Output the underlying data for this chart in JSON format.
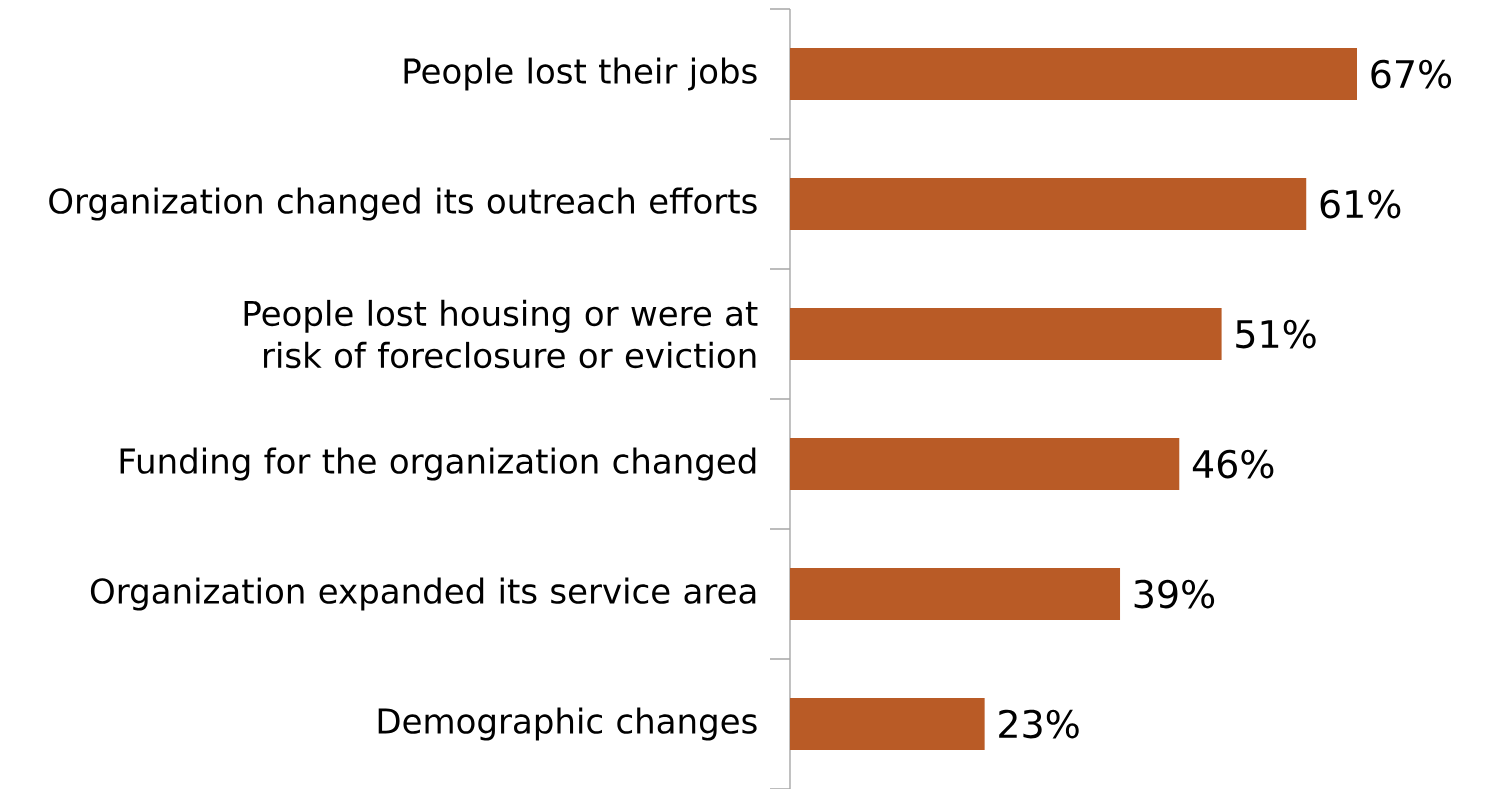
{
  "chart_data": {
    "type": "bar",
    "orientation": "horizontal",
    "categories": [
      "People lost their jobs",
      "Organization changed its outreach efforts",
      "People lost housing or were at risk of foreclosure or eviction",
      "Funding for the organization changed",
      "Organization expanded its service area",
      "Demographic changes"
    ],
    "values": [
      67,
      61,
      51,
      46,
      39,
      23
    ],
    "value_labels": [
      "67%",
      "61%",
      "51%",
      "46%",
      "39%",
      "23%"
    ],
    "color": "#b95b26"
  }
}
